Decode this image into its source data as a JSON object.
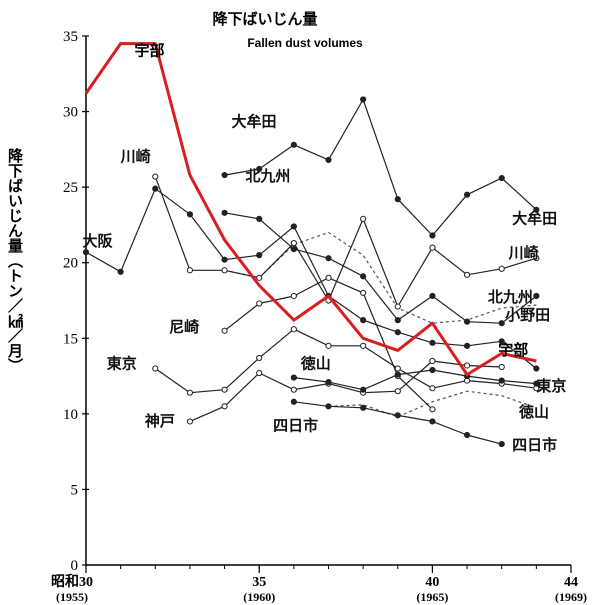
{
  "chart_data": {
    "type": "line",
    "title": "降下ばいじん量",
    "subtitle": "Fallen dust volumes",
    "ylabel": "降下ばいじん量（トン／㎢／月）",
    "ylim": [
      0,
      35
    ],
    "yticks": [
      0,
      5,
      10,
      15,
      20,
      25,
      30,
      35
    ],
    "xlim": [
      1955,
      1969
    ],
    "xticks": [
      {
        "x": 1955,
        "line1": "昭和30",
        "line2": "(1955)"
      },
      {
        "x": 1960,
        "line1": "35",
        "line2": "(1960)"
      },
      {
        "x": 1965,
        "line1": "40",
        "line2": "(1965)"
      },
      {
        "x": 1969,
        "line1": "44",
        "line2": "(1969)"
      }
    ],
    "grid": false,
    "legend": "inline labels",
    "series": [
      {
        "name": "宇部",
        "color": "#d81e1e",
        "stroke": "thick",
        "marker": "none",
        "labels": [
          "宇部",
          "宇部"
        ],
        "x": [
          1955,
          1956,
          1957,
          1958,
          1959,
          1960,
          1961,
          1962,
          1963,
          1964,
          1965,
          1966,
          1967,
          1968
        ],
        "y": [
          31.2,
          34.5,
          34.5,
          25.8,
          21.5,
          18.5,
          16.2,
          17.8,
          15.0,
          14.2,
          16.0,
          12.6,
          14.0,
          13.5
        ]
      },
      {
        "name": "大牟田",
        "color": "#222222",
        "stroke": "solid",
        "marker": "filled",
        "labels": [
          "大牟田",
          "大牟田"
        ],
        "x": [
          1959,
          1960,
          1961,
          1962,
          1963,
          1964,
          1965,
          1966,
          1967,
          1968
        ],
        "y": [
          25.8,
          26.2,
          27.8,
          26.8,
          30.8,
          24.2,
          21.8,
          24.5,
          25.6,
          23.5
        ]
      },
      {
        "name": "大阪",
        "color": "#222222",
        "stroke": "solid",
        "marker": "filled",
        "labels": [
          "大阪",
          "大阪"
        ],
        "x": [
          1955,
          1956,
          1957,
          1958,
          1959,
          1960,
          1961,
          1962,
          1963,
          1964,
          1965,
          1966,
          1967,
          1968
        ],
        "y": [
          20.7,
          19.4,
          24.9,
          23.2,
          20.2,
          20.5,
          22.4,
          17.8,
          16.2,
          15.4,
          14.7,
          14.5,
          14.8,
          13.0
        ]
      },
      {
        "name": "川崎",
        "color": "#222222",
        "stroke": "solid",
        "marker": "open",
        "labels": [
          "川崎",
          "川崎"
        ],
        "x": [
          1957,
          1958,
          1959,
          1960,
          1961,
          1962,
          1963,
          1964,
          1965,
          1966,
          1967,
          1968
        ],
        "y": [
          25.7,
          19.5,
          19.5,
          19.0,
          21.3,
          17.5,
          22.9,
          17.1,
          21.0,
          19.2,
          19.6,
          20.3
        ]
      },
      {
        "name": "北九州",
        "color": "#222222",
        "stroke": "solid",
        "marker": "filled",
        "labels": [
          "北九州",
          "北九州"
        ],
        "x": [
          1959,
          1960,
          1961,
          1962,
          1963,
          1964,
          1965,
          1966,
          1967,
          1968
        ],
        "y": [
          23.3,
          22.9,
          20.9,
          20.3,
          19.1,
          16.2,
          17.8,
          16.1,
          16.0,
          17.8
        ]
      },
      {
        "name": "尼崎",
        "color": "#222222",
        "stroke": "solid",
        "marker": "open",
        "labels": [
          "尼崎"
        ],
        "x": [
          1959,
          1960,
          1961,
          1962,
          1963,
          1964,
          1965
        ],
        "y": [
          15.5,
          17.3,
          17.8,
          19.0,
          18.0,
          12.5,
          10.3
        ]
      },
      {
        "name": "東京",
        "color": "#222222",
        "stroke": "solid",
        "marker": "open",
        "labels": [
          "東京",
          "東京"
        ],
        "x": [
          1957,
          1958,
          1959,
          1960,
          1961,
          1962,
          1963,
          1964,
          1965,
          1966,
          1967,
          1968
        ],
        "y": [
          13.0,
          11.4,
          11.6,
          13.7,
          15.6,
          14.5,
          14.5,
          13.0,
          11.7,
          12.2,
          12.0,
          11.7
        ]
      },
      {
        "name": "神戸",
        "color": "#222222",
        "stroke": "solid",
        "marker": "open",
        "labels": [
          "神戸"
        ],
        "x": [
          1958,
          1959,
          1960,
          1961,
          1962,
          1963,
          1964,
          1965,
          1966,
          1967
        ],
        "y": [
          9.5,
          10.5,
          12.7,
          11.6,
          12.0,
          11.4,
          11.5,
          13.5,
          13.2,
          13.1
        ]
      },
      {
        "name": "徳山",
        "color": "#222222",
        "stroke": "solid",
        "marker": "filled",
        "labels": [
          "徳山",
          "徳山"
        ],
        "x": [
          1961,
          1962,
          1963,
          1964,
          1965,
          1966,
          1967,
          1968
        ],
        "y": [
          12.4,
          12.1,
          11.6,
          12.6,
          12.9,
          12.5,
          12.2,
          12.0
        ]
      },
      {
        "name": "四日市",
        "color": "#222222",
        "stroke": "solid",
        "marker": "filled",
        "labels": [
          "四日市",
          "四日市"
        ],
        "x": [
          1961,
          1962,
          1963,
          1964,
          1965,
          1966,
          1967
        ],
        "y": [
          10.8,
          10.5,
          10.4,
          9.9,
          9.5,
          8.6,
          8.0
        ]
      },
      {
        "name": "小野田",
        "color": "#555555",
        "stroke": "dashed",
        "marker": "none",
        "labels": [
          "小野田"
        ],
        "x": [
          1959,
          1960,
          1961,
          1962,
          1963,
          1964,
          1965,
          1966,
          1967,
          1968
        ],
        "y": [
          19.5,
          19.0,
          21.2,
          22.0,
          20.5,
          17.0,
          16.0,
          16.2,
          17.0,
          17.2
        ]
      },
      {
        "name": "徳山 (破線)",
        "color": "#555555",
        "stroke": "dashed",
        "marker": "none",
        "labels": [],
        "x": [
          1962,
          1963,
          1964,
          1965,
          1966,
          1967,
          1968
        ],
        "y": [
          10.5,
          10.6,
          9.8,
          10.8,
          11.5,
          11.2,
          10.4
        ]
      }
    ]
  }
}
